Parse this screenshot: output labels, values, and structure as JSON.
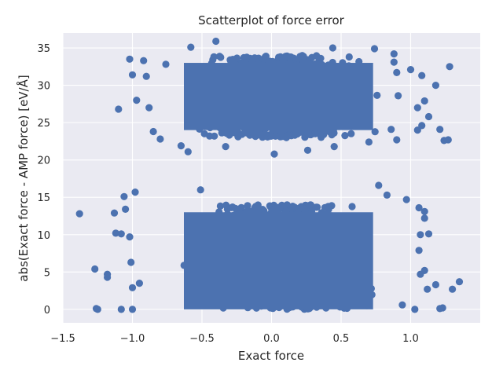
{
  "chart_data": {
    "type": "scatter",
    "title": "Scatterplot of force error",
    "xlabel": "Exact force",
    "ylabel": "abs(Exact force - AMP force) [eV/Å]",
    "xlim": [
      -1.5,
      1.5
    ],
    "ylim": [
      -1.8,
      37
    ],
    "x_ticks": [
      -1.5,
      -1.0,
      -0.5,
      0.0,
      0.5,
      1.0
    ],
    "x_tick_labels": [
      "−1.5",
      "−1.0",
      "−0.5",
      "0.0",
      "0.5",
      "1.0"
    ],
    "y_ticks": [
      0,
      5,
      10,
      15,
      20,
      25,
      30,
      35
    ],
    "y_tick_labels": [
      "0",
      "5",
      "10",
      "15",
      "20",
      "25",
      "30",
      "35"
    ],
    "grid": true,
    "background": "#eaeaf2",
    "series": [
      {
        "color": "#4c72b0",
        "clusters": [
          {
            "x_range": [
              -0.75,
              0.85
            ],
            "y_range": [
              0,
              14
            ],
            "description": "dense lower band"
          },
          {
            "x_range": [
              -0.75,
              0.85
            ],
            "y_range": [
              23,
              34
            ],
            "description": "dense upper band"
          }
        ],
        "outliers": [
          {
            "x": -1.38,
            "y": 12.8
          },
          {
            "x": -1.27,
            "y": 5.4
          },
          {
            "x": -1.26,
            "y": 0.1
          },
          {
            "x": -1.25,
            "y": 0.0
          },
          {
            "x": -1.18,
            "y": 4.7
          },
          {
            "x": -1.18,
            "y": 4.3
          },
          {
            "x": -1.13,
            "y": 12.9
          },
          {
            "x": -1.12,
            "y": 10.2
          },
          {
            "x": -1.08,
            "y": 10.1
          },
          {
            "x": -1.06,
            "y": 15.1
          },
          {
            "x": -1.05,
            "y": 13.4
          },
          {
            "x": -1.02,
            "y": 9.7
          },
          {
            "x": -1.01,
            "y": 6.3
          },
          {
            "x": -1.0,
            "y": 2.9
          },
          {
            "x": -0.98,
            "y": 15.7
          },
          {
            "x": -1.08,
            "y": 0.0
          },
          {
            "x": -1.0,
            "y": 0.0
          },
          {
            "x": -0.95,
            "y": 3.5
          },
          {
            "x": -1.1,
            "y": 26.8
          },
          {
            "x": -1.02,
            "y": 33.5
          },
          {
            "x": -1.0,
            "y": 31.4
          },
          {
            "x": -0.97,
            "y": 28.0
          },
          {
            "x": -0.92,
            "y": 33.3
          },
          {
            "x": -0.9,
            "y": 31.2
          },
          {
            "x": -0.88,
            "y": 27.0
          },
          {
            "x": -0.85,
            "y": 23.8
          },
          {
            "x": -0.8,
            "y": 22.8
          },
          {
            "x": -0.76,
            "y": 32.8
          },
          {
            "x": -0.65,
            "y": 21.9
          },
          {
            "x": -0.6,
            "y": 21.1
          },
          {
            "x": -0.58,
            "y": 35.1
          },
          {
            "x": -0.4,
            "y": 35.9
          },
          {
            "x": -0.33,
            "y": 21.8
          },
          {
            "x": 0.02,
            "y": 20.8
          },
          {
            "x": 0.26,
            "y": 21.3
          },
          {
            "x": 0.45,
            "y": 21.8
          },
          {
            "x": 0.44,
            "y": 35.0
          },
          {
            "x": 0.7,
            "y": 22.4
          },
          {
            "x": 0.74,
            "y": 34.9
          },
          {
            "x": 0.88,
            "y": 34.2
          },
          {
            "x": 0.88,
            "y": 33.1
          },
          {
            "x": 0.9,
            "y": 31.7
          },
          {
            "x": 0.86,
            "y": 24.1
          },
          {
            "x": 0.9,
            "y": 22.7
          },
          {
            "x": 0.91,
            "y": 28.6
          },
          {
            "x": 1.0,
            "y": 32.1
          },
          {
            "x": 1.05,
            "y": 27.0
          },
          {
            "x": 1.08,
            "y": 31.3
          },
          {
            "x": 1.1,
            "y": 27.9
          },
          {
            "x": 1.08,
            "y": 24.6
          },
          {
            "x": 1.05,
            "y": 24.0
          },
          {
            "x": 1.13,
            "y": 25.8
          },
          {
            "x": 1.18,
            "y": 30.0
          },
          {
            "x": 1.21,
            "y": 24.1
          },
          {
            "x": 1.24,
            "y": 22.6
          },
          {
            "x": 1.27,
            "y": 22.7
          },
          {
            "x": 1.28,
            "y": 32.5
          },
          {
            "x": 0.83,
            "y": 15.3
          },
          {
            "x": 0.97,
            "y": 14.7
          },
          {
            "x": 1.06,
            "y": 13.6
          },
          {
            "x": 1.1,
            "y": 13.1
          },
          {
            "x": 1.1,
            "y": 12.2
          },
          {
            "x": 1.07,
            "y": 10.0
          },
          {
            "x": 1.13,
            "y": 10.1
          },
          {
            "x": 1.06,
            "y": 7.9
          },
          {
            "x": 1.1,
            "y": 5.2
          },
          {
            "x": 1.07,
            "y": 4.7
          },
          {
            "x": 1.12,
            "y": 2.7
          },
          {
            "x": 1.18,
            "y": 3.3
          },
          {
            "x": 1.21,
            "y": 0.1
          },
          {
            "x": 1.23,
            "y": 0.2
          },
          {
            "x": 1.3,
            "y": 2.7
          },
          {
            "x": 1.35,
            "y": 3.7
          },
          {
            "x": 1.03,
            "y": 0.0
          },
          {
            "x": 0.94,
            "y": 0.6
          },
          {
            "x": -0.51,
            "y": 16.0
          },
          {
            "x": 0.77,
            "y": 16.6
          }
        ]
      }
    ]
  }
}
